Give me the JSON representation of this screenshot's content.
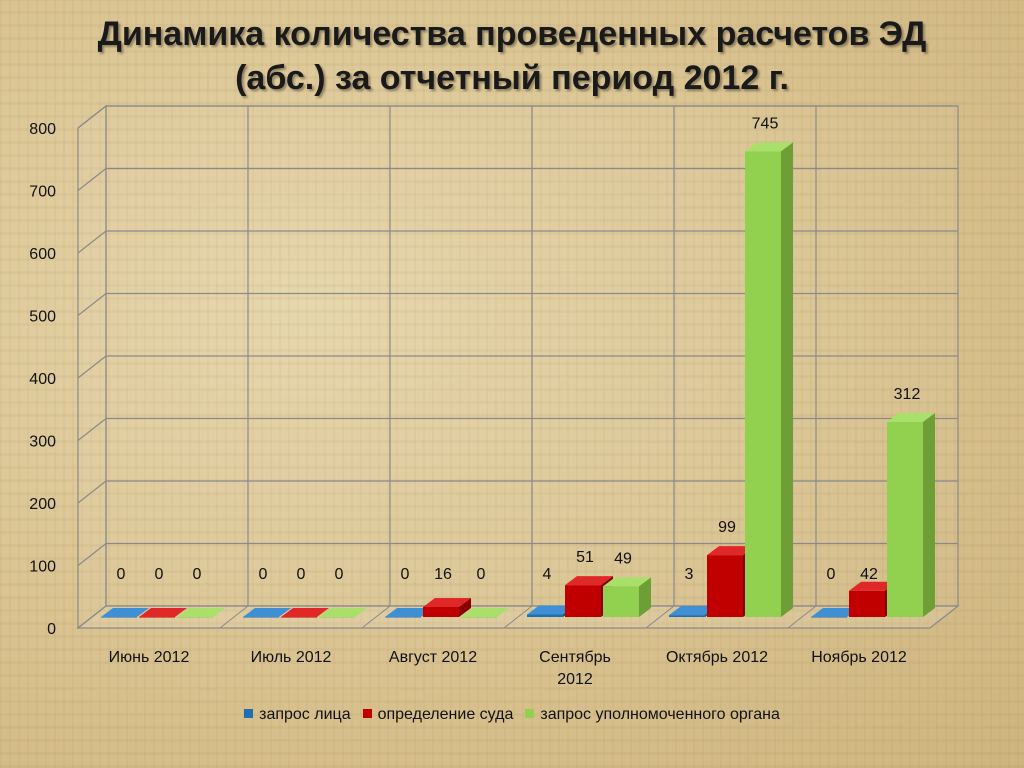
{
  "slide": {
    "title_line1": "Динамика количества проведенных расчетов ЭД",
    "title_line2": "(абс.) за отчетный период 2012 г."
  },
  "chart_data": {
    "type": "bar",
    "title": "Динамика количества проведенных расчетов ЭД (абс.) за отчетный период 2012 г.",
    "categories": [
      "Июнь 2012",
      "Июль 2012",
      "Август 2012",
      "Сентябрь 2012",
      "Октябрь 2012",
      "Ноябрь 2012"
    ],
    "category_label_lines": [
      [
        "Июнь 2012"
      ],
      [
        "Июль 2012"
      ],
      [
        "Август 2012"
      ],
      [
        "Сентябрь",
        "2012"
      ],
      [
        "Октябрь 2012"
      ],
      [
        "Ноябрь 2012"
      ]
    ],
    "series": [
      {
        "name": "запрос лица",
        "values": [
          0,
          0,
          0,
          4,
          3,
          0
        ],
        "color": "#1f6fb5",
        "top_color": "#3f8fd5",
        "side_color": "#14507f"
      },
      {
        "name": "определение суда",
        "values": [
          0,
          0,
          16,
          51,
          99,
          42
        ],
        "color": "#c00000",
        "top_color": "#e02828",
        "side_color": "#8a0000"
      },
      {
        "name": "запрос уполномоченного органа",
        "values": [
          0,
          0,
          0,
          49,
          745,
          312
        ],
        "color": "#92d050",
        "top_color": "#a8e06a",
        "side_color": "#6e9e36"
      }
    ],
    "ylim": [
      0,
      800
    ],
    "yticks": [
      0,
      100,
      200,
      300,
      400,
      500,
      600,
      700,
      800
    ],
    "grid": true,
    "three_d": true,
    "legend_position": "bottom",
    "xlabel": "",
    "ylabel": ""
  }
}
